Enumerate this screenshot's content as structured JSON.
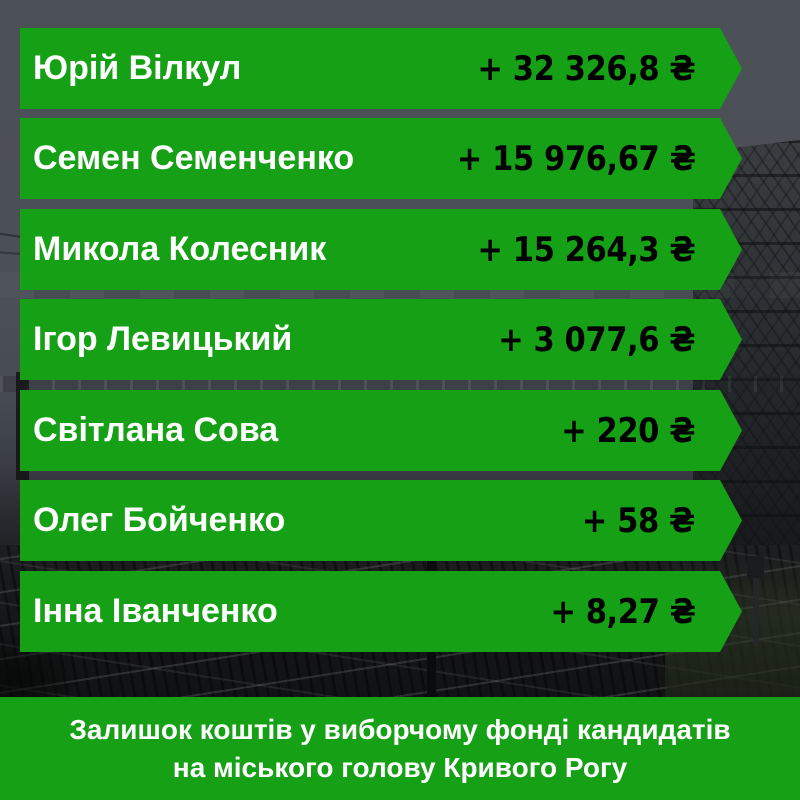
{
  "colors": {
    "banner_green": "#15A015",
    "caption_green": "#15A015",
    "name_text": "#FFFFFF",
    "amount_text": "#000000",
    "sky_gray": "#4A4E55"
  },
  "currency_symbol": "₴",
  "rows": [
    {
      "name": "Юрій Вілкул",
      "amount": "+ 32 326,8 ₴"
    },
    {
      "name": "Семен Семенченко",
      "amount": "+ 15 976,67 ₴"
    },
    {
      "name": "Микола Колесник",
      "amount": "+ 15 264,3 ₴"
    },
    {
      "name": "Ігор Левицький",
      "amount": "+ 3 077,6 ₴"
    },
    {
      "name": "Світлана Сова",
      "amount": "+ 220 ₴"
    },
    {
      "name": "Олег Бойченко",
      "amount": "+ 58 ₴"
    },
    {
      "name": "Інна Іванченко",
      "amount": "+ 8,27 ₴"
    }
  ],
  "caption": {
    "line1": "Залишок коштів у виборчому фонді кандидатів",
    "line2": "на міського голову Кривого Рогу"
  },
  "chart_data": {
    "type": "table",
    "title": "Залишок коштів у виборчому фонді кандидатів на міського голову Кривого Рогу",
    "categories": [
      "Юрій Вілкул",
      "Семен Семенченко",
      "Микола Колесник",
      "Ігор Левицький",
      "Світлана Сова",
      "Олег Бойченко",
      "Інна Іванченко"
    ],
    "values": [
      32326.8,
      15976.67,
      15264.3,
      3077.6,
      220,
      58,
      8.27
    ],
    "unit": "₴",
    "value_prefix": "+",
    "legend_position": "none",
    "grid": false
  }
}
